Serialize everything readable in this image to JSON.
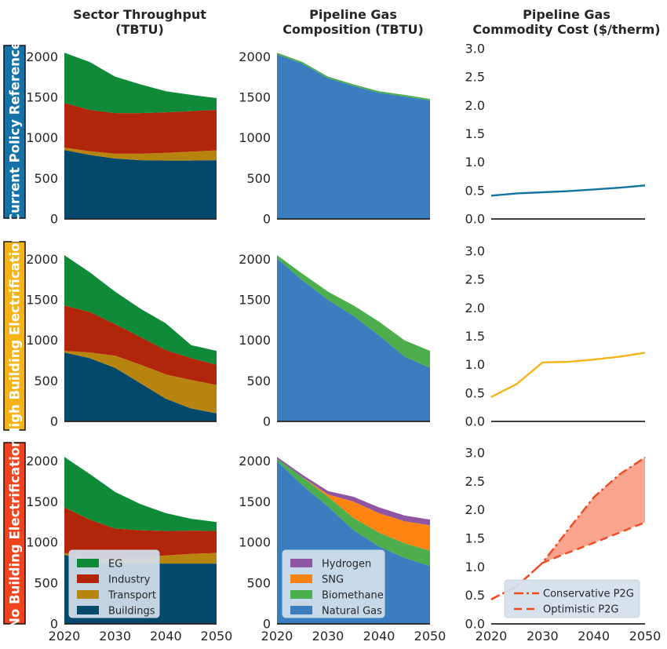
{
  "column_titles": [
    [
      "Sector Throughput",
      "(TBTU)"
    ],
    [
      "Pipeline Gas",
      "Composition (TBTU)"
    ],
    [
      "Pipeline Gas",
      "Commodity Cost ($/therm)"
    ]
  ],
  "row_labels": [
    "Current Policy Reference",
    "High Building Electrification",
    "No Building Electrification"
  ],
  "row_colors": [
    "#1672a6",
    "#f5b31a",
    "#f1431d"
  ],
  "colors": {
    "eg": "#0e8a39",
    "industry": "#b1260b",
    "transport": "#b7850f",
    "buildings": "#03496b",
    "hydrogen": "#8e55a3",
    "sng": "#ff8311",
    "biomethane": "#4cae4c",
    "natural_gas": "#3a7ebf",
    "cost_ref": "#11739e",
    "cost_hbe": "#f5b31a",
    "cost_nbe": "#ef4a22",
    "cost_band": "#f9a48d"
  },
  "legends": {
    "sector": [
      "EG",
      "Industry",
      "Transport",
      "Buildings"
    ],
    "composition": [
      "Hydrogen",
      "SNG",
      "Biomethane",
      "Natural Gas"
    ],
    "cost": [
      "Conservative P2G",
      "Optimistic P2G"
    ]
  },
  "chart_data": [
    {
      "type": "area",
      "title": "Sector Throughput (TBTU)",
      "row": "Current Policy Reference",
      "x": [
        2020,
        2025,
        2030,
        2035,
        2040,
        2045,
        2050
      ],
      "xlim": [
        2020,
        2050
      ],
      "ylim": [
        0,
        2100
      ],
      "xticks": [
        2020,
        2030,
        2040,
        2050
      ],
      "yticks": [
        0,
        500,
        1000,
        1500,
        2000
      ],
      "series": [
        {
          "name": "Buildings",
          "values": [
            850,
            790,
            745,
            725,
            720,
            720,
            725
          ]
        },
        {
          "name": "Transport",
          "values": [
            30,
            45,
            60,
            80,
            95,
            110,
            120
          ]
        },
        {
          "name": "Industry",
          "values": [
            550,
            510,
            500,
            500,
            500,
            500,
            500
          ]
        },
        {
          "name": "EG",
          "values": [
            620,
            590,
            450,
            355,
            260,
            200,
            145
          ]
        }
      ]
    },
    {
      "type": "area",
      "title": "Pipeline Gas Composition (TBTU)",
      "row": "Current Policy Reference",
      "x": [
        2020,
        2025,
        2030,
        2035,
        2040,
        2045,
        2050
      ],
      "xlim": [
        2020,
        2050
      ],
      "ylim": [
        0,
        2100
      ],
      "xticks": [
        2020,
        2030,
        2040,
        2050
      ],
      "yticks": [
        0,
        500,
        1000,
        1500,
        2000
      ],
      "series": [
        {
          "name": "Natural Gas",
          "values": [
            2030,
            1915,
            1735,
            1640,
            1555,
            1510,
            1460
          ]
        },
        {
          "name": "Biomethane",
          "values": [
            20,
            20,
            20,
            20,
            20,
            20,
            20
          ]
        }
      ]
    },
    {
      "type": "line",
      "title": "Pipeline Gas Commodity Cost ($/therm)",
      "row": "Current Policy Reference",
      "x": [
        2020,
        2025,
        2030,
        2035,
        2040,
        2045,
        2050
      ],
      "xlim": [
        2020,
        2050
      ],
      "ylim": [
        0,
        3
      ],
      "yticks": [
        0.0,
        0.5,
        1.0,
        1.5,
        2.0,
        2.5,
        3.0
      ],
      "series": [
        {
          "name": "",
          "values": [
            0.41,
            0.45,
            0.47,
            0.49,
            0.52,
            0.55,
            0.59
          ]
        }
      ]
    },
    {
      "type": "area",
      "title": "Sector Throughput (TBTU)",
      "row": "High Building Electrification",
      "x": [
        2020,
        2025,
        2030,
        2035,
        2040,
        2045,
        2050
      ],
      "xlim": [
        2020,
        2050
      ],
      "ylim": [
        0,
        2100
      ],
      "xticks": [
        2020,
        2030,
        2040,
        2050
      ],
      "yticks": [
        0,
        500,
        1000,
        1500,
        2000
      ],
      "series": [
        {
          "name": "Buildings",
          "values": [
            850,
            780,
            660,
            470,
            280,
            160,
            100
          ]
        },
        {
          "name": "Transport",
          "values": [
            20,
            70,
            150,
            230,
            300,
            350,
            350
          ]
        },
        {
          "name": "Industry",
          "values": [
            560,
            500,
            390,
            340,
            300,
            270,
            250
          ]
        },
        {
          "name": "EG",
          "values": [
            620,
            490,
            400,
            350,
            330,
            160,
            170
          ]
        }
      ]
    },
    {
      "type": "area",
      "title": "Pipeline Gas Composition (TBTU)",
      "row": "High Building Electrification",
      "x": [
        2020,
        2025,
        2030,
        2035,
        2040,
        2045,
        2050
      ],
      "xlim": [
        2020,
        2050
      ],
      "ylim": [
        0,
        2100
      ],
      "xticks": [
        2020,
        2030,
        2040,
        2050
      ],
      "yticks": [
        0,
        500,
        1000,
        1500,
        2000
      ],
      "series": [
        {
          "name": "Natural Gas",
          "values": [
            2010,
            1740,
            1500,
            1300,
            1060,
            800,
            660
          ]
        },
        {
          "name": "Biomethane",
          "values": [
            40,
            80,
            100,
            130,
            170,
            200,
            210
          ]
        }
      ]
    },
    {
      "type": "line",
      "title": "Pipeline Gas Commodity Cost ($/therm)",
      "row": "High Building Electrification",
      "x": [
        2020,
        2025,
        2030,
        2035,
        2040,
        2045,
        2050
      ],
      "xlim": [
        2020,
        2050
      ],
      "ylim": [
        0,
        3
      ],
      "yticks": [
        0.0,
        0.5,
        1.0,
        1.5,
        2.0,
        2.5,
        3.0
      ],
      "series": [
        {
          "name": "",
          "values": [
            0.43,
            0.66,
            1.04,
            1.05,
            1.09,
            1.14,
            1.21
          ]
        }
      ]
    },
    {
      "type": "area",
      "title": "Sector Throughput (TBTU)",
      "row": "No Building Electrification",
      "x": [
        2020,
        2025,
        2030,
        2035,
        2040,
        2045,
        2050
      ],
      "xlim": [
        2020,
        2050
      ],
      "ylim": [
        0,
        2100
      ],
      "xticks": [
        2020,
        2030,
        2040,
        2050
      ],
      "yticks": [
        0,
        500,
        1000,
        1500,
        2000
      ],
      "series": [
        {
          "name": "Buildings",
          "values": [
            850,
            760,
            740,
            740,
            740,
            740,
            740
          ]
        },
        {
          "name": "Transport",
          "values": [
            20,
            50,
            60,
            80,
            100,
            120,
            130
          ]
        },
        {
          "name": "Industry",
          "values": [
            560,
            470,
            370,
            330,
            300,
            285,
            270
          ]
        },
        {
          "name": "EG",
          "values": [
            620,
            560,
            450,
            320,
            220,
            145,
            110
          ]
        }
      ]
    },
    {
      "type": "area",
      "title": "Pipeline Gas Composition (TBTU)",
      "row": "No Building Electrification",
      "x": [
        2020,
        2025,
        2030,
        2035,
        2040,
        2045,
        2050
      ],
      "xlim": [
        2020,
        2050
      ],
      "ylim": [
        0,
        2100
      ],
      "xticks": [
        2020,
        2030,
        2040,
        2050
      ],
      "yticks": [
        0,
        500,
        1000,
        1500,
        2000
      ],
      "series": [
        {
          "name": "Natural Gas",
          "values": [
            2000,
            1700,
            1440,
            1150,
            950,
            810,
            710
          ]
        },
        {
          "name": "Biomethane",
          "values": [
            30,
            100,
            120,
            150,
            170,
            180,
            190
          ]
        },
        {
          "name": "SNG",
          "values": [
            0,
            0,
            30,
            200,
            240,
            270,
            310
          ]
        },
        {
          "name": "Hydrogen",
          "values": [
            20,
            30,
            40,
            60,
            70,
            70,
            70
          ]
        }
      ]
    },
    {
      "type": "line",
      "title": "Pipeline Gas Commodity Cost ($/therm)",
      "row": "No Building Electrification",
      "x": [
        2020,
        2025,
        2030,
        2035,
        2040,
        2045,
        2050
      ],
      "xlim": [
        2020,
        2050
      ],
      "ylim": [
        0,
        3
      ],
      "yticks": [
        0.0,
        0.5,
        1.0,
        1.5,
        2.0,
        2.5,
        3.0
      ],
      "series": [
        {
          "name": "Conservative P2G",
          "values": [
            0.43,
            0.66,
            1.07,
            1.65,
            2.22,
            2.62,
            2.92
          ]
        },
        {
          "name": "Optimistic P2G",
          "values": [
            0.43,
            0.66,
            1.07,
            1.25,
            1.42,
            1.6,
            1.78
          ]
        }
      ]
    }
  ]
}
